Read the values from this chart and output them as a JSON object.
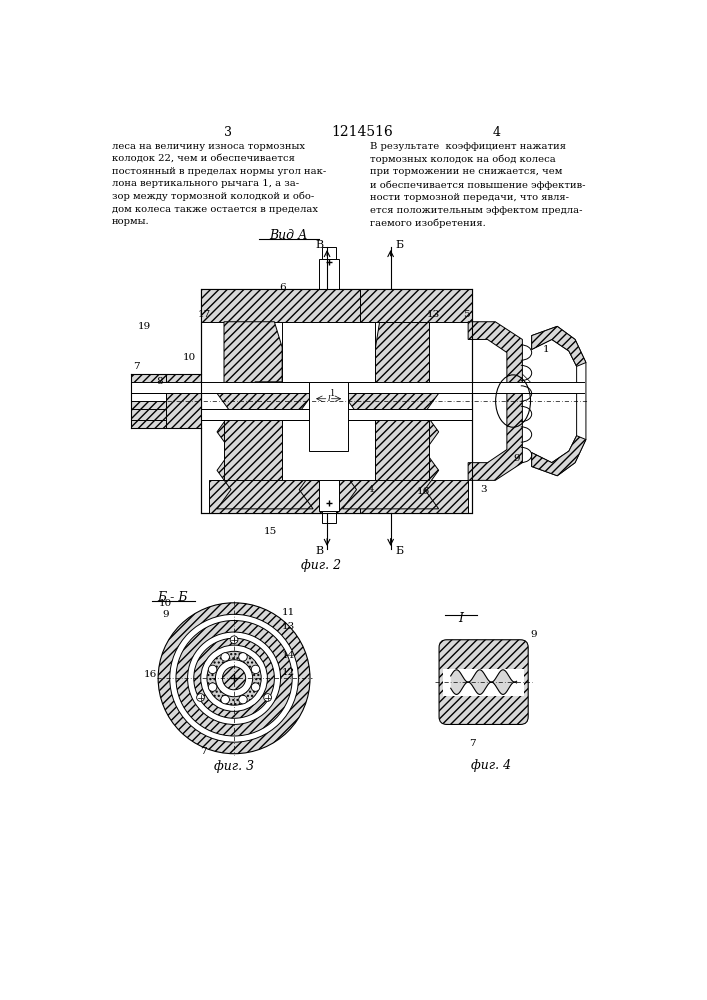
{
  "bg_color": "#ffffff",
  "page_number_left": "3",
  "page_number_center": "1214516",
  "page_number_right": "4",
  "text_left": "леса на величину износа тормозных\nколодок 22, чем и обеспечивается\nпостоянный в пределах нормы угол нак-\nлона вертикального рычага 1, а за-\nзор между тормозной колодкой и обо-\nдом колеса также остается в пределах\nнормы.",
  "text_right": "В результате  коэффициент нажатия\nтормозных колодок на обод колеса\nпри торможении не снижается, чем\nи обеспечивается повышение эффектив-\nности тормозной передачи, что явля-\nется положительным эффектом предла-\nгаемого изобретения.",
  "vid_a_label": "Вид А",
  "fig2_label": "фиг. 2",
  "fig3_label": "фиг. 3",
  "fig4_label": "фиг. 4",
  "section_bb_label": "Б - Б",
  "section_I_label": "I"
}
